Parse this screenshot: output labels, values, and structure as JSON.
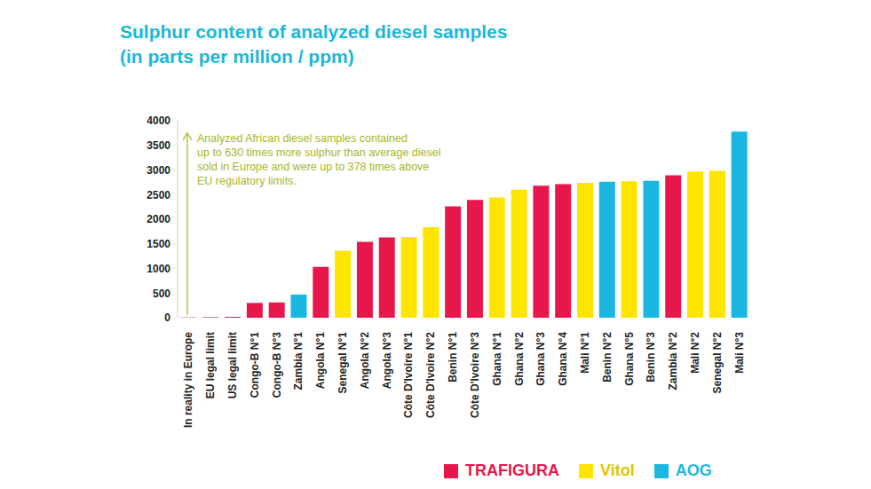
{
  "chart_data": {
    "type": "bar",
    "title": "Sulphur content of analyzed diesel samples",
    "subtitle": "(in parts per million / ppm)",
    "categories": [
      "In reality in Europe",
      "EU legal limit",
      "US legal limit",
      "Congo-B N°1",
      "Congo-B N°3",
      "Zambia N°1",
      "Angola N°1",
      "Senegal N°1",
      "Angola N°2",
      "Angola N°3",
      "Côte D'Ivoire N°1",
      "Côte D'Ivoire N°2",
      "Benin N°1",
      "Côte D'Ivoire N°3",
      "Ghana N°1",
      "Ghana N°2",
      "Ghana N°3",
      "Ghana N°4",
      "Mali N°1",
      "Benin N°2",
      "Ghana N°5",
      "Benin N°3",
      "Zambia N°2",
      "Mali N°2",
      "Senegal N°2",
      "Mali N°3"
    ],
    "values": [
      6,
      10,
      15,
      300,
      310,
      470,
      1030,
      1360,
      1540,
      1630,
      1640,
      1840,
      2260,
      2390,
      2440,
      2600,
      2680,
      2710,
      2740,
      2760,
      2770,
      2780,
      2890,
      2970,
      2980,
      3780
    ],
    "colors": [
      "#8c1d2e",
      "#8c1d2e",
      "#8c1d2e",
      "#e8174b",
      "#e8174b",
      "#1ab8e0",
      "#e8174b",
      "#ffe500",
      "#e8174b",
      "#e8174b",
      "#ffe500",
      "#ffe500",
      "#e8174b",
      "#e8174b",
      "#ffe500",
      "#ffe500",
      "#e8174b",
      "#e8174b",
      "#ffe500",
      "#1ab8e0",
      "#ffe500",
      "#1ab8e0",
      "#e8174b",
      "#ffe500",
      "#ffe500",
      "#1ab8e0"
    ],
    "ylim": [
      0,
      4000
    ],
    "yticks": [
      0,
      500,
      1000,
      1500,
      2000,
      2500,
      3000,
      3500,
      4000
    ],
    "grid": false,
    "annotation": [
      "Analyzed African diesel samples contained",
      "up to 630 times more sulphur than average diesel",
      "sold in Europe and were up to 378 times above",
      "EU regulatory limits."
    ],
    "legend_entries": [
      {
        "name": "TRAFIGURA",
        "color": "#e8174b"
      },
      {
        "name": "Vitol",
        "color": "#ffe500"
      },
      {
        "name": "AOG",
        "color": "#1ab8e0"
      }
    ]
  }
}
